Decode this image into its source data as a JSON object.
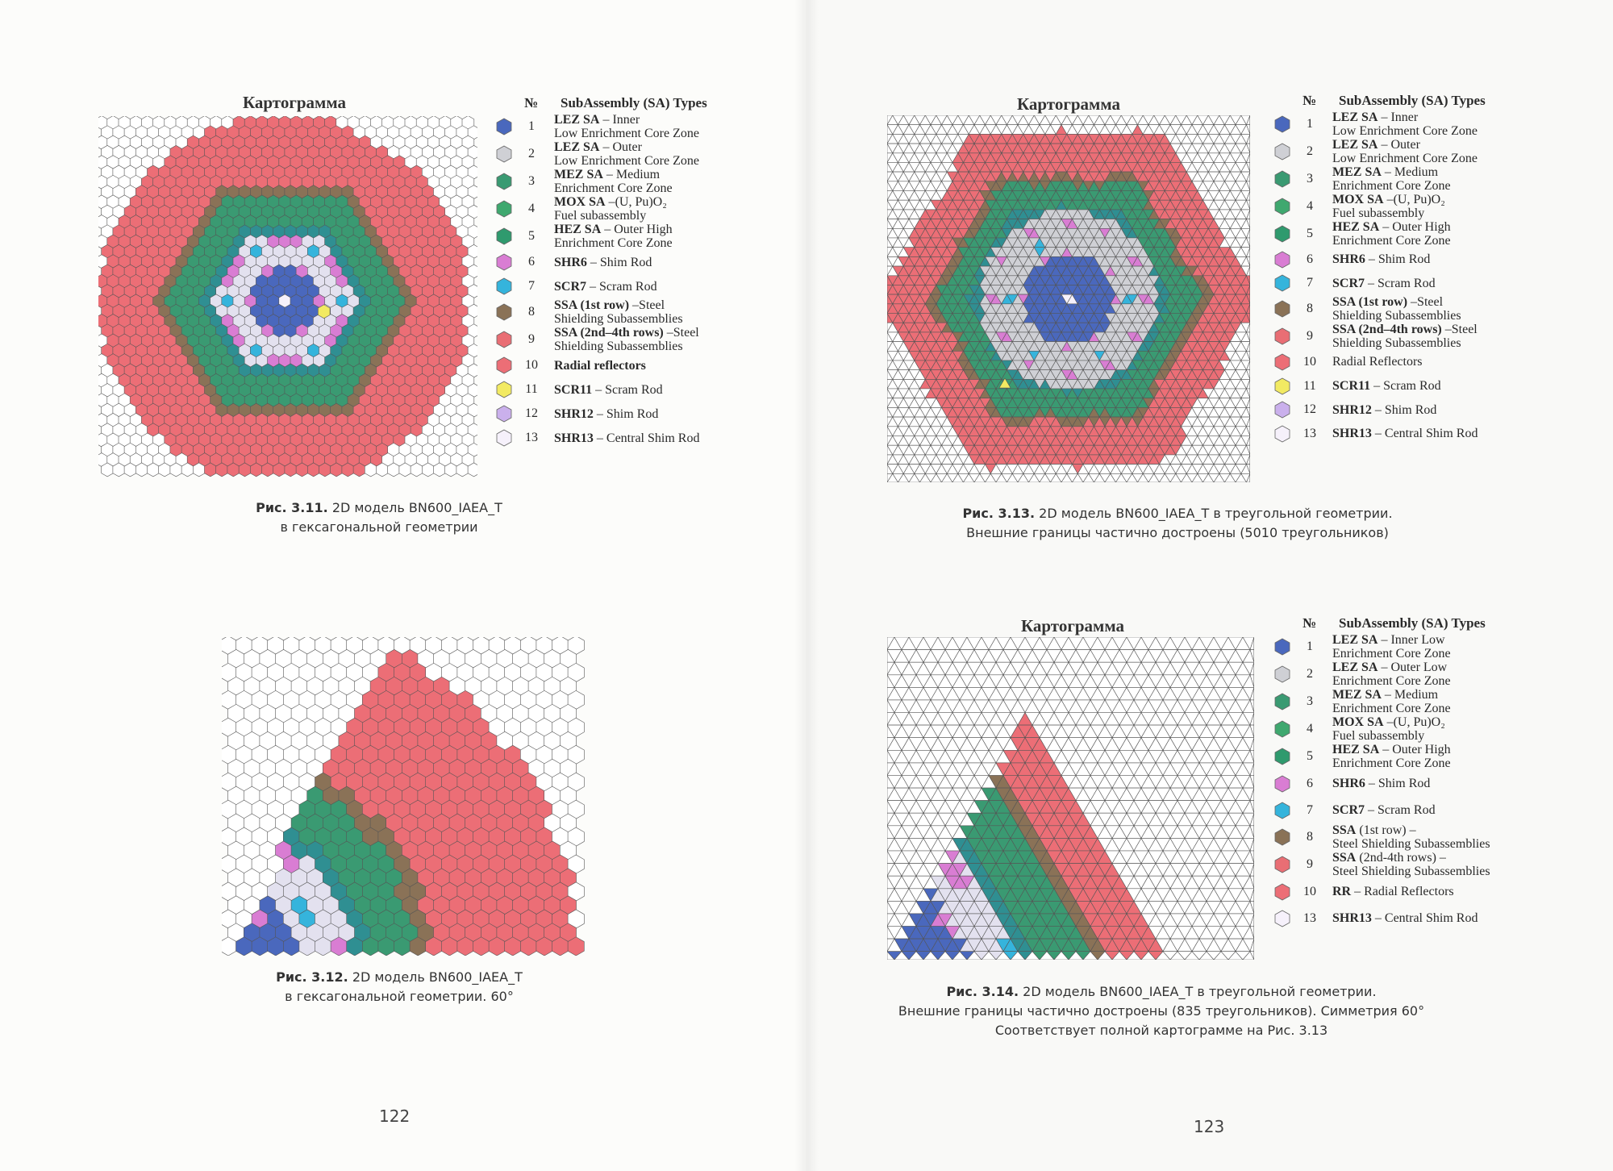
{
  "colors": {
    "c1": "#4a68bd",
    "c2": "#cfd0d5",
    "c3": "#3a9a72",
    "c4": "#3fa86f",
    "c5": "#2f9a6e",
    "c6": "#d97dd3",
    "c7": "#35b4dc",
    "c8": "#8a7257",
    "c9": "#e96e74",
    "c10": "#ec6e76",
    "c11": "#f2ea62",
    "c12": "#cab0ec",
    "c13": "#f6f1fb",
    "empty": "#ffffff",
    "teal": "#2f8f92",
    "lav": "#e3e1ef"
  },
  "fig311": {
    "title": "Картограмма",
    "caption_label": "Рис. 3.11.",
    "caption_line1": "2D модель BN600_IAEA_T",
    "caption_line2": "в гексагональной геометрии"
  },
  "legend311": {
    "header_no": "№",
    "header_title": "SubAssembly (SA) Types",
    "items": [
      {
        "n": "1",
        "name": "LEZ SA",
        "desc": " – Inner",
        "line2": "Low Enrichment Core Zone",
        "color": "c1"
      },
      {
        "n": "2",
        "name": "LEZ SA",
        "desc": " – Outer",
        "line2": "Low Enrichment Core Zone",
        "color": "c2"
      },
      {
        "n": "3",
        "name": "MEZ SA",
        "desc": " – Medium",
        "line2": "Enrichment Core Zone",
        "color": "c3"
      },
      {
        "n": "4",
        "name": "MOX SA",
        "desc": " –(U, Pu)O₂",
        "line2": "Fuel subassembly",
        "color": "c4"
      },
      {
        "n": "5",
        "name": "HEZ SA",
        "desc": " – Outer High",
        "line2": "Enrichment Core Zone",
        "color": "c5"
      },
      {
        "n": "6",
        "name": "SHR6",
        "desc": " – Shim Rod",
        "line2": "",
        "color": "c6"
      },
      {
        "n": "7",
        "name": "SCR7",
        "desc": " – Scram Rod",
        "line2": "",
        "color": "c7"
      },
      {
        "n": "8",
        "name": "SSA (1st row)",
        "desc": " –Steel",
        "line2": "Shielding Subassemblies",
        "color": "c8"
      },
      {
        "n": "9",
        "name": "SSA (2nd–4th rows)",
        "desc": " –Steel",
        "line2": "Shielding Subassemblies",
        "color": "c9"
      },
      {
        "n": "10",
        "name": "Radial reflectors",
        "desc": "",
        "line2": "",
        "color": "c10"
      },
      {
        "n": "11",
        "name": "SCR11",
        "desc": " – Scram Rod",
        "line2": "",
        "color": "c11"
      },
      {
        "n": "12",
        "name": "SHR12",
        "desc": " – Shim Rod",
        "line2": "",
        "color": "c12"
      },
      {
        "n": "13",
        "name": "SHR13",
        "desc": " – Central Shim Rod",
        "line2": "",
        "color": "c13"
      }
    ]
  },
  "fig312": {
    "caption_label": "Рис. 3.12.",
    "caption_line1": "2D модель BN600_IAEA_T",
    "caption_line2": "в гексагональной геометрии. 60°"
  },
  "fig313": {
    "title": "Картограмма",
    "caption_label": "Рис. 3.13.",
    "caption_line1": "2D модель BN600_IAEA_T в треугольной геометрии.",
    "caption_line2": "Внешние границы частично достроены (5010 треугольников)"
  },
  "legend313": {
    "header_no": "№",
    "header_title": "SubAssembly (SA) Types",
    "items": [
      {
        "n": "1",
        "name": "LEZ SA",
        "desc": " – Inner",
        "line2": "Low Enrichment Core Zone",
        "color": "c1"
      },
      {
        "n": "2",
        "name": "LEZ SA",
        "desc": " – Outer",
        "line2": "Low Enrichment Core Zone",
        "color": "c2"
      },
      {
        "n": "3",
        "name": "MEZ SA",
        "desc": " – Medium",
        "line2": "Enrichment Core Zone",
        "color": "c3"
      },
      {
        "n": "4",
        "name": "MOX SA",
        "desc": " –(U, Pu)O₂",
        "line2": "Fuel subassembly",
        "color": "c4"
      },
      {
        "n": "5",
        "name": "HEZ SA",
        "desc": " – Outer High",
        "line2": "Enrichment Core Zone",
        "color": "c5"
      },
      {
        "n": "6",
        "name": "SHR6",
        "desc": " – Shim Rod",
        "line2": "",
        "color": "c6"
      },
      {
        "n": "7",
        "name": "SCR7",
        "desc": " – Scram Rod",
        "line2": "",
        "color": "c7"
      },
      {
        "n": "8",
        "name": "SSA (1st row)",
        "desc": " –Steel",
        "line2": "Shielding Subassemblies",
        "color": "c8"
      },
      {
        "n": "9",
        "name": "SSA (2nd–4th rows)",
        "desc": " –Steel",
        "line2": "Shielding Subassemblies",
        "color": "c9"
      },
      {
        "n": "10",
        "name": "",
        "desc": "Radial Reflectors",
        "line2": "",
        "color": "c10"
      },
      {
        "n": "11",
        "name": "SCR11",
        "desc": " – Scram Rod",
        "line2": "",
        "color": "c11"
      },
      {
        "n": "12",
        "name": "SHR12",
        "desc": " – Shim Rod",
        "line2": "",
        "color": "c12"
      },
      {
        "n": "13",
        "name": "SHR13",
        "desc": " – Central Shim Rod",
        "line2": "",
        "color": "c13"
      }
    ]
  },
  "fig314": {
    "title": "Картограмма",
    "caption_label": "Рис. 3.14.",
    "caption_line1": "2D модель BN600_IAEA_T в треугольной геометрии.",
    "caption_line2": "Внешние границы частично достроены (835 треугольников). Симметрия 60°",
    "caption_line3": "Соответствует полной картограмме на Рис. 3.13"
  },
  "legend314": {
    "header_no": "№",
    "header_title": "SubAssembly (SA) Types",
    "items": [
      {
        "n": "1",
        "name": "LEZ SA",
        "desc": " – Inner Low",
        "line2": "Enrichment Core Zone",
        "color": "c1"
      },
      {
        "n": "2",
        "name": "LEZ SA",
        "desc": " – Outer Low",
        "line2": "Enrichment Core Zone",
        "color": "c2"
      },
      {
        "n": "3",
        "name": "MEZ SA",
        "desc": " – Medium",
        "line2": "Enrichment Core Zone",
        "color": "c3"
      },
      {
        "n": "4",
        "name": "MOX SA",
        "desc": " –(U, Pu)O₂",
        "line2": "Fuel subassembly",
        "color": "c4"
      },
      {
        "n": "5",
        "name": "HEZ SA",
        "desc": " – Outer High",
        "line2": "Enrichment Core Zone",
        "color": "c5"
      },
      {
        "n": "6",
        "name": "SHR6",
        "desc": " – Shim Rod",
        "line2": "",
        "color": "c6"
      },
      {
        "n": "7",
        "name": "SCR7",
        "desc": " – Scram Rod",
        "line2": "",
        "color": "c7"
      },
      {
        "n": "8",
        "name": "SSA",
        "desc": " (1st row) –",
        "line2": "Steel Shielding Subassemblies",
        "color": "c8"
      },
      {
        "n": "9",
        "name": "SSA",
        "desc": " (2nd-4th rows) –",
        "line2": "Steel Shielding Subassemblies",
        "color": "c9"
      },
      {
        "n": "10",
        "name": "RR",
        "desc": " – Radial Reflectors",
        "line2": "",
        "color": "c10"
      },
      {
        "n": "13",
        "name": "SHR13",
        "desc": " – Central Shim Rod",
        "line2": "",
        "color": "c13"
      }
    ]
  },
  "page_left_no": "122",
  "page_right_no": "123"
}
